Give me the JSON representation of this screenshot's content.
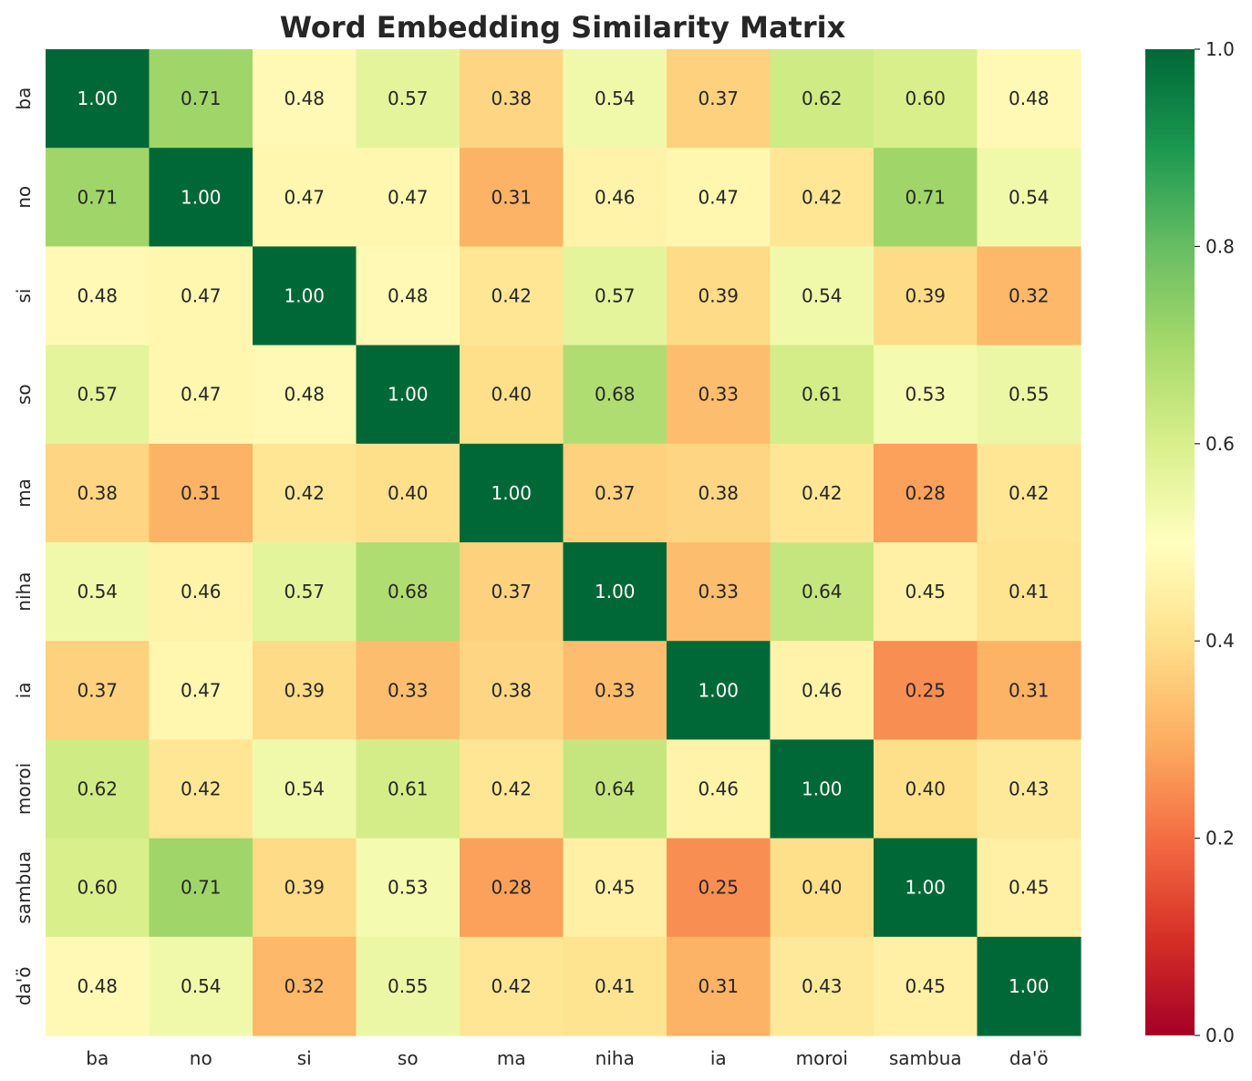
{
  "chart_data": {
    "type": "heatmap",
    "title": "Word Embedding Similarity Matrix",
    "xlabel": "",
    "ylabel": "",
    "x_categories": [
      "ba",
      "no",
      "si",
      "so",
      "ma",
      "niha",
      "ia",
      "moroi",
      "sambua",
      "da'ö"
    ],
    "y_categories": [
      "ba",
      "no",
      "si",
      "so",
      "ma",
      "niha",
      "ia",
      "moroi",
      "sambua",
      "da'ö"
    ],
    "values": [
      [
        1.0,
        0.71,
        0.48,
        0.57,
        0.38,
        0.54,
        0.37,
        0.62,
        0.6,
        0.48
      ],
      [
        0.71,
        1.0,
        0.47,
        0.47,
        0.31,
        0.46,
        0.47,
        0.42,
        0.71,
        0.54
      ],
      [
        0.48,
        0.47,
        1.0,
        0.48,
        0.42,
        0.57,
        0.39,
        0.54,
        0.39,
        0.32
      ],
      [
        0.57,
        0.47,
        0.48,
        1.0,
        0.4,
        0.68,
        0.33,
        0.61,
        0.53,
        0.55
      ],
      [
        0.38,
        0.31,
        0.42,
        0.4,
        1.0,
        0.37,
        0.38,
        0.42,
        0.28,
        0.42
      ],
      [
        0.54,
        0.46,
        0.57,
        0.68,
        0.37,
        1.0,
        0.33,
        0.64,
        0.45,
        0.41
      ],
      [
        0.37,
        0.47,
        0.39,
        0.33,
        0.38,
        0.33,
        1.0,
        0.46,
        0.25,
        0.31
      ],
      [
        0.62,
        0.42,
        0.54,
        0.61,
        0.42,
        0.64,
        0.46,
        1.0,
        0.4,
        0.43
      ],
      [
        0.6,
        0.71,
        0.39,
        0.53,
        0.28,
        0.45,
        0.25,
        0.4,
        1.0,
        0.45
      ],
      [
        0.48,
        0.54,
        0.32,
        0.55,
        0.42,
        0.41,
        0.31,
        0.43,
        0.45,
        1.0
      ]
    ],
    "value_format": "0.00",
    "colormap": "RdYlGn",
    "vmin": 0.0,
    "vmax": 1.0,
    "colorbar_ticks": [
      "0.0",
      "0.2",
      "0.4",
      "0.6",
      "0.8",
      "1.0"
    ],
    "grid": false
  }
}
